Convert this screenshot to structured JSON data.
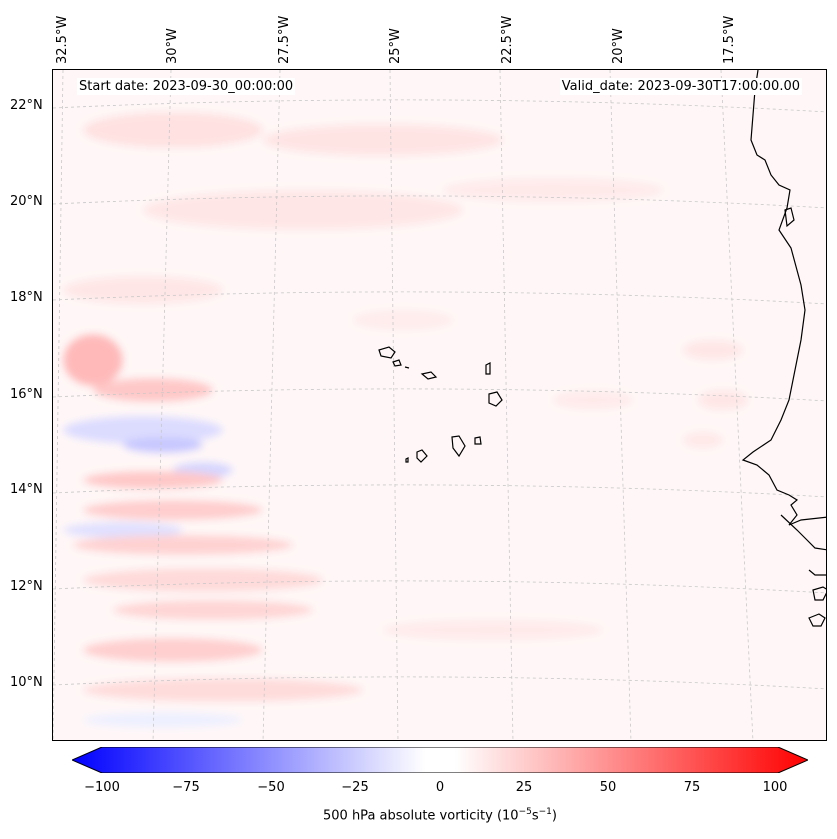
{
  "annotations": {
    "start": "Start date: 2023-09-30_00:00:00",
    "valid": "Valid_date: 2023-09-30T17:00:00.00"
  },
  "lon_labels": [
    "32.5°W",
    "30°W",
    "27.5°W",
    "25°W",
    "22.5°W",
    "20°W",
    "17.5°W"
  ],
  "lat_labels": [
    "22°N",
    "20°N",
    "18°N",
    "16°N",
    "14°N",
    "12°N",
    "10°N"
  ],
  "colorbar": {
    "ticks": [
      "−100",
      "−75",
      "−50",
      "−25",
      "0",
      "25",
      "50",
      "75",
      "100"
    ],
    "label": "500 hPa absolute vorticity (10",
    "label_exp1": "−5",
    "label_mid": "s",
    "label_exp2": "−1",
    "label_end": ")",
    "min": -100,
    "max": 100,
    "colors": {
      "negative": "#0000ff",
      "zero": "#ffffff",
      "positive": "#ff0000"
    }
  },
  "map": {
    "background": "#fff7f7",
    "coastline_color": "#000000",
    "gridline_color": "#c8c8c8"
  }
}
